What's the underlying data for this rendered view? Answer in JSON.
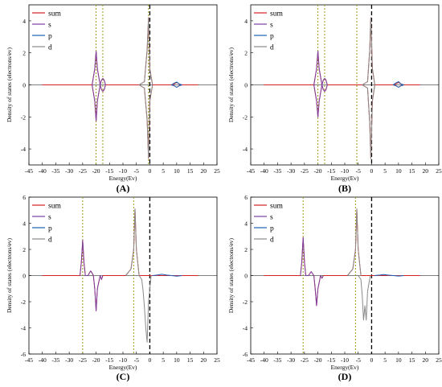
{
  "chart_data": [
    {
      "panel": "A",
      "caption": "(A)",
      "type": "line",
      "xlabel": "Energy(Ev)",
      "ylabel": "Density of states (electrons/ev)",
      "xlim": [
        -45,
        25
      ],
      "ylim": [
        -5,
        5
      ],
      "x_ticks": [
        "-45",
        "-40",
        "-35",
        "-30",
        "-25",
        "-20",
        "-15",
        "-10",
        "-5",
        "0",
        "5",
        "10",
        "15",
        "20",
        "25"
      ],
      "y_ticks": [
        "-4",
        "-2",
        "0",
        "2",
        "4"
      ],
      "legend": {
        "position": "top-left",
        "entries": [
          "sum",
          "s",
          "p",
          "d"
        ]
      },
      "reference_lines": [
        {
          "x": -20.0,
          "style": "dotted",
          "color": "#9a9a1a"
        },
        {
          "x": -17.5,
          "style": "dotted",
          "color": "#9a9a1a"
        },
        {
          "x": -0.5,
          "style": "dotted",
          "color": "#9a9a1a"
        },
        {
          "x": 0,
          "style": "dashed",
          "color": "#000000"
        }
      ],
      "series": [
        {
          "name": "sum",
          "color": "#d42020",
          "x": [
            -40,
            -21.5,
            -20.5,
            -20,
            -19.5,
            -18.5,
            -18,
            -17.5,
            -17,
            -16.5,
            -4,
            -2,
            -1,
            -0.5,
            0,
            1,
            8,
            9,
            9.5,
            10,
            10.5,
            11,
            12,
            18
          ],
          "y": [
            0,
            0,
            1.0,
            2.1,
            1.0,
            0,
            0.3,
            0.4,
            0.3,
            0,
            0,
            0.2,
            2.2,
            4.2,
            1.0,
            0,
            0,
            0.05,
            0.1,
            0.15,
            0.1,
            0.05,
            0,
            0
          ]
        },
        {
          "name": "sum",
          "color": "#d42020",
          "x": [
            -40,
            -21.5,
            -20.5,
            -20,
            -19.5,
            -18.5,
            -18,
            -17.5,
            -17,
            -16.5,
            -4,
            -2,
            -1,
            -0.5,
            0,
            1,
            8,
            9,
            9.5,
            10,
            10.5,
            11,
            12,
            18
          ],
          "y": [
            0,
            0,
            -1.0,
            -2.25,
            -1.0,
            0,
            -0.3,
            -0.4,
            -0.3,
            0,
            0,
            -0.2,
            -2.2,
            -4.6,
            -1.0,
            0,
            0,
            -0.05,
            -0.1,
            -0.15,
            -0.1,
            -0.05,
            0,
            0
          ]
        },
        {
          "name": "s",
          "color": "#7b3fa0",
          "x": [
            -21.5,
            -20.5,
            -20,
            -19.5,
            -18.5,
            -18,
            -17.5,
            -17,
            -16.5
          ],
          "y": [
            0,
            1.0,
            2.1,
            1.0,
            0,
            0.3,
            0.4,
            0.3,
            0
          ]
        },
        {
          "name": "s",
          "color": "#7b3fa0",
          "x": [
            -21.5,
            -20.5,
            -20,
            -19.5,
            -18.5,
            -18,
            -17.5,
            -17,
            -16.5
          ],
          "y": [
            0,
            -1.0,
            -2.25,
            -1.0,
            0,
            -0.3,
            -0.4,
            -0.3,
            0
          ]
        },
        {
          "name": "p",
          "color": "#1a5fb4",
          "x": [
            8,
            9,
            10,
            11,
            12
          ],
          "y": [
            0,
            0.1,
            0.18,
            0.05,
            0
          ]
        },
        {
          "name": "p",
          "color": "#1a5fb4",
          "x": [
            8,
            9,
            10,
            11,
            12
          ],
          "y": [
            0,
            -0.05,
            -0.15,
            -0.05,
            0
          ]
        },
        {
          "name": "d",
          "color": "#8a8a8a",
          "x": [
            -4,
            -2,
            -1,
            -0.5,
            0,
            1
          ],
          "y": [
            0,
            0.2,
            2.2,
            4.2,
            1.0,
            0
          ]
        },
        {
          "name": "d",
          "color": "#8a8a8a",
          "x": [
            -4,
            -2,
            -1,
            -0.5,
            0,
            1
          ],
          "y": [
            0,
            -0.2,
            -2.2,
            -4.6,
            -1.0,
            0
          ]
        }
      ]
    },
    {
      "panel": "B",
      "caption": "(B)",
      "type": "line",
      "xlabel": "Energy(Ev)",
      "ylabel": "Density of states (electrons/ev)",
      "xlim": [
        -45,
        25
      ],
      "ylim": [
        -5,
        5
      ],
      "x_ticks": [
        "-45",
        "-40",
        "-35",
        "-30",
        "-25",
        "-20",
        "-15",
        "-10",
        "-5",
        "0",
        "5",
        "10",
        "15",
        "20",
        "25"
      ],
      "y_ticks": [
        "-4",
        "-2",
        "0",
        "2",
        "4"
      ],
      "legend": {
        "position": "top-left",
        "entries": [
          "sum",
          "s",
          "p",
          "d"
        ]
      },
      "reference_lines": [
        {
          "x": -20.0,
          "style": "dotted",
          "color": "#9a9a1a"
        },
        {
          "x": -17.5,
          "style": "dotted",
          "color": "#9a9a1a"
        },
        {
          "x": -5.5,
          "style": "dotted",
          "color": "#9a9a1a"
        },
        {
          "x": 0,
          "style": "dashed",
          "color": "#000000"
        }
      ],
      "series": [
        {
          "name": "sum",
          "color": "#d42020",
          "x": [
            -40,
            -21.5,
            -20.5,
            -20,
            -19.5,
            -18.5,
            -18,
            -17.5,
            -17,
            -16.5,
            -3.5,
            -1.5,
            -0.7,
            -0.3,
            0.3,
            1.2,
            8,
            9,
            9.5,
            10,
            10.5,
            11,
            12,
            18
          ],
          "y": [
            0,
            0,
            1.0,
            2.1,
            1.0,
            0,
            0.3,
            0.4,
            0.3,
            0,
            0,
            0.2,
            2.2,
            4.2,
            1.0,
            0,
            0,
            0.05,
            0.1,
            0.15,
            0.1,
            0.05,
            0,
            0
          ]
        },
        {
          "name": "sum",
          "color": "#d42020",
          "x": [
            -40,
            -21.5,
            -20.5,
            -20,
            -19.5,
            -18.5,
            -18,
            -17.5,
            -17,
            -16.5,
            -3.5,
            -1.5,
            -0.7,
            -0.3,
            0.3,
            1.2,
            8,
            9,
            9.5,
            10,
            10.5,
            11,
            12,
            18
          ],
          "y": [
            0,
            0,
            -1.0,
            -2.0,
            -1.0,
            0,
            -0.3,
            -0.4,
            -0.3,
            0,
            0,
            -0.2,
            -2.4,
            -4.6,
            -1.0,
            0,
            0,
            -0.05,
            -0.1,
            -0.15,
            -0.1,
            -0.05,
            0,
            0
          ]
        },
        {
          "name": "s",
          "color": "#7b3fa0",
          "x": [
            -21.5,
            -20.5,
            -20,
            -19.5,
            -18.5,
            -18,
            -17.5,
            -17,
            -16.5
          ],
          "y": [
            0,
            1.0,
            2.1,
            1.0,
            0,
            0.3,
            0.4,
            0.3,
            0
          ]
        },
        {
          "name": "s",
          "color": "#7b3fa0",
          "x": [
            -21.5,
            -20.5,
            -20,
            -19.5,
            -18.5,
            -18,
            -17.5,
            -17,
            -16.5
          ],
          "y": [
            0,
            -1.0,
            -2.0,
            -1.0,
            0,
            -0.3,
            -0.4,
            -0.3,
            0
          ]
        },
        {
          "name": "p",
          "color": "#1a5fb4",
          "x": [
            8,
            9,
            10,
            11,
            12
          ],
          "y": [
            0,
            0.12,
            0.2,
            0.05,
            0
          ]
        },
        {
          "name": "p",
          "color": "#1a5fb4",
          "x": [
            8,
            9,
            10,
            11,
            12
          ],
          "y": [
            0,
            -0.05,
            -0.15,
            -0.05,
            0
          ]
        },
        {
          "name": "d",
          "color": "#8a8a8a",
          "x": [
            -3.5,
            -1.5,
            -0.7,
            -0.3,
            0.3,
            1.2
          ],
          "y": [
            0,
            0.2,
            2.2,
            4.2,
            1.0,
            0
          ]
        },
        {
          "name": "d",
          "color": "#8a8a8a",
          "x": [
            -3.5,
            -1.5,
            -0.7,
            -0.3,
            0.3,
            1.2
          ],
          "y": [
            0,
            -0.2,
            -2.4,
            -4.6,
            -1.0,
            0
          ]
        }
      ]
    },
    {
      "panel": "C",
      "caption": "(C)",
      "type": "line",
      "xlabel": "Energy(Ev)",
      "ylabel": "Density of states (electrons/ev)",
      "xlim": [
        -45,
        25
      ],
      "ylim": [
        -6,
        6
      ],
      "x_ticks": [
        "-45",
        "-40",
        "-35",
        "-30",
        "-25",
        "-20",
        "-15",
        "-10",
        "-5",
        "0",
        "5",
        "10",
        "15",
        "20",
        "25"
      ],
      "y_ticks": [
        "-6",
        "-4",
        "-2",
        "0",
        "2",
        "4",
        "6"
      ],
      "legend": {
        "position": "top-left",
        "entries": [
          "sum",
          "s",
          "p",
          "d"
        ]
      },
      "reference_lines": [
        {
          "x": -25.0,
          "style": "dotted",
          "color": "#9a9a1a"
        },
        {
          "x": -6.0,
          "style": "dotted",
          "color": "#9a9a1a"
        },
        {
          "x": 0,
          "style": "dashed",
          "color": "#000000"
        }
      ],
      "series": [
        {
          "name": "sum",
          "color": "#d42020",
          "x": [
            -40,
            -26,
            -25.5,
            -25,
            -24.5,
            -24,
            -23,
            -22.5,
            -22,
            -21.5,
            -21,
            -20.5,
            -20,
            -19.5,
            -18.5,
            -18,
            -17.5,
            -9,
            -7,
            -6,
            -5.5,
            -5,
            -4,
            18
          ],
          "y": [
            0,
            0,
            1.0,
            2.7,
            1.0,
            0,
            0,
            0.2,
            0.35,
            0.2,
            0,
            -1.0,
            -2.7,
            -1.0,
            0,
            -0.3,
            0,
            0,
            0.5,
            2.0,
            5.1,
            2.0,
            0,
            0
          ]
        },
        {
          "name": "s",
          "color": "#7b3fa0",
          "x": [
            -26,
            -25.5,
            -25,
            -24.5,
            -24,
            -23,
            -22.5,
            -22,
            -21.5,
            -21,
            -20.5,
            -20,
            -19.5,
            -18.5,
            -18,
            -17.5
          ],
          "y": [
            0,
            1.0,
            2.7,
            1.0,
            0,
            0,
            0.2,
            0.35,
            0.2,
            0,
            -1.0,
            -2.7,
            -1.0,
            0,
            -0.3,
            0
          ]
        },
        {
          "name": "p",
          "color": "#1a5fb4",
          "x": [
            1,
            3,
            4.5,
            6,
            8,
            10,
            12
          ],
          "y": [
            0,
            0.05,
            0.1,
            0.05,
            0,
            -0.05,
            0
          ]
        },
        {
          "name": "d",
          "color": "#8a8a8a",
          "x": [
            -9,
            -7,
            -6,
            -5.5,
            -5,
            -4
          ],
          "y": [
            0,
            0.5,
            2.0,
            5.1,
            2.0,
            0
          ]
        },
        {
          "name": "d",
          "color": "#8a8a8a",
          "x": [
            -4,
            -3,
            -2.5,
            -2,
            -1.5,
            -1,
            -0.5,
            0.5
          ],
          "y": [
            0,
            -0.3,
            -1.2,
            -2.4,
            -4.0,
            -5.1,
            -2.0,
            0
          ]
        }
      ]
    },
    {
      "panel": "D",
      "caption": "(D)",
      "type": "line",
      "xlabel": "Energy(Ev)",
      "ylabel": "Density of states (electrons/ev)",
      "xlim": [
        -45,
        25
      ],
      "ylim": [
        -6,
        6
      ],
      "x_ticks": [
        "-45",
        "-40",
        "-35",
        "-30",
        "-25",
        "-20",
        "-15",
        "-10",
        "-5",
        "0",
        "5",
        "10",
        "15",
        "20",
        "25"
      ],
      "y_ticks": [
        "-6",
        "-4",
        "-2",
        "0",
        "2",
        "4",
        "6"
      ],
      "legend": {
        "position": "top-left",
        "entries": [
          "sum",
          "s",
          "p",
          "d"
        ]
      },
      "reference_lines": [
        {
          "x": -25.5,
          "style": "dotted",
          "color": "#9a9a1a"
        },
        {
          "x": -6.0,
          "style": "dotted",
          "color": "#9a9a1a"
        },
        {
          "x": 0,
          "style": "dashed",
          "color": "#000000"
        }
      ],
      "series": [
        {
          "name": "sum",
          "color": "#d42020",
          "x": [
            -40,
            -26.5,
            -26,
            -25.5,
            -25,
            -24.5,
            -23.5,
            -23,
            -22.5,
            -22,
            -21.5,
            -21,
            -20.5,
            -20,
            -19,
            -18.5,
            -18,
            -9,
            -7,
            -6,
            -5.5,
            -5,
            -4,
            18
          ],
          "y": [
            0,
            0,
            1.0,
            2.9,
            1.0,
            0,
            0,
            0.15,
            0.3,
            0.15,
            0,
            -1.0,
            -2.3,
            -1.0,
            0,
            -0.2,
            0,
            0,
            0.5,
            2.0,
            5.1,
            2.0,
            0,
            0
          ]
        },
        {
          "name": "s",
          "color": "#7b3fa0",
          "x": [
            -26.5,
            -26,
            -25.5,
            -25,
            -24.5,
            -23.5,
            -23,
            -22.5,
            -22,
            -21.5,
            -21,
            -20.5,
            -20,
            -19,
            -18.5,
            -18
          ],
          "y": [
            0,
            1.0,
            2.9,
            1.0,
            0,
            0,
            0.15,
            0.3,
            0.15,
            0,
            -1.0,
            -2.3,
            -1.0,
            0,
            -0.2,
            0
          ]
        },
        {
          "name": "p",
          "color": "#1a5fb4",
          "x": [
            1,
            3,
            4.5,
            6,
            8,
            10,
            12
          ],
          "y": [
            0,
            0.04,
            0.08,
            0.04,
            0,
            -0.04,
            0
          ]
        },
        {
          "name": "d",
          "color": "#8a8a8a",
          "x": [
            -9,
            -7,
            -6,
            -5.5,
            -5,
            -4
          ],
          "y": [
            0,
            0.5,
            2.0,
            5.1,
            2.0,
            0
          ]
        },
        {
          "name": "d",
          "color": "#8a8a8a",
          "x": [
            -5,
            -4,
            -3.5,
            -3,
            -2.5,
            -2,
            -1.5,
            -0.5
          ],
          "y": [
            0,
            -0.3,
            -1.5,
            -3.4,
            -2.3,
            -3.4,
            -1.2,
            0
          ]
        }
      ]
    }
  ]
}
